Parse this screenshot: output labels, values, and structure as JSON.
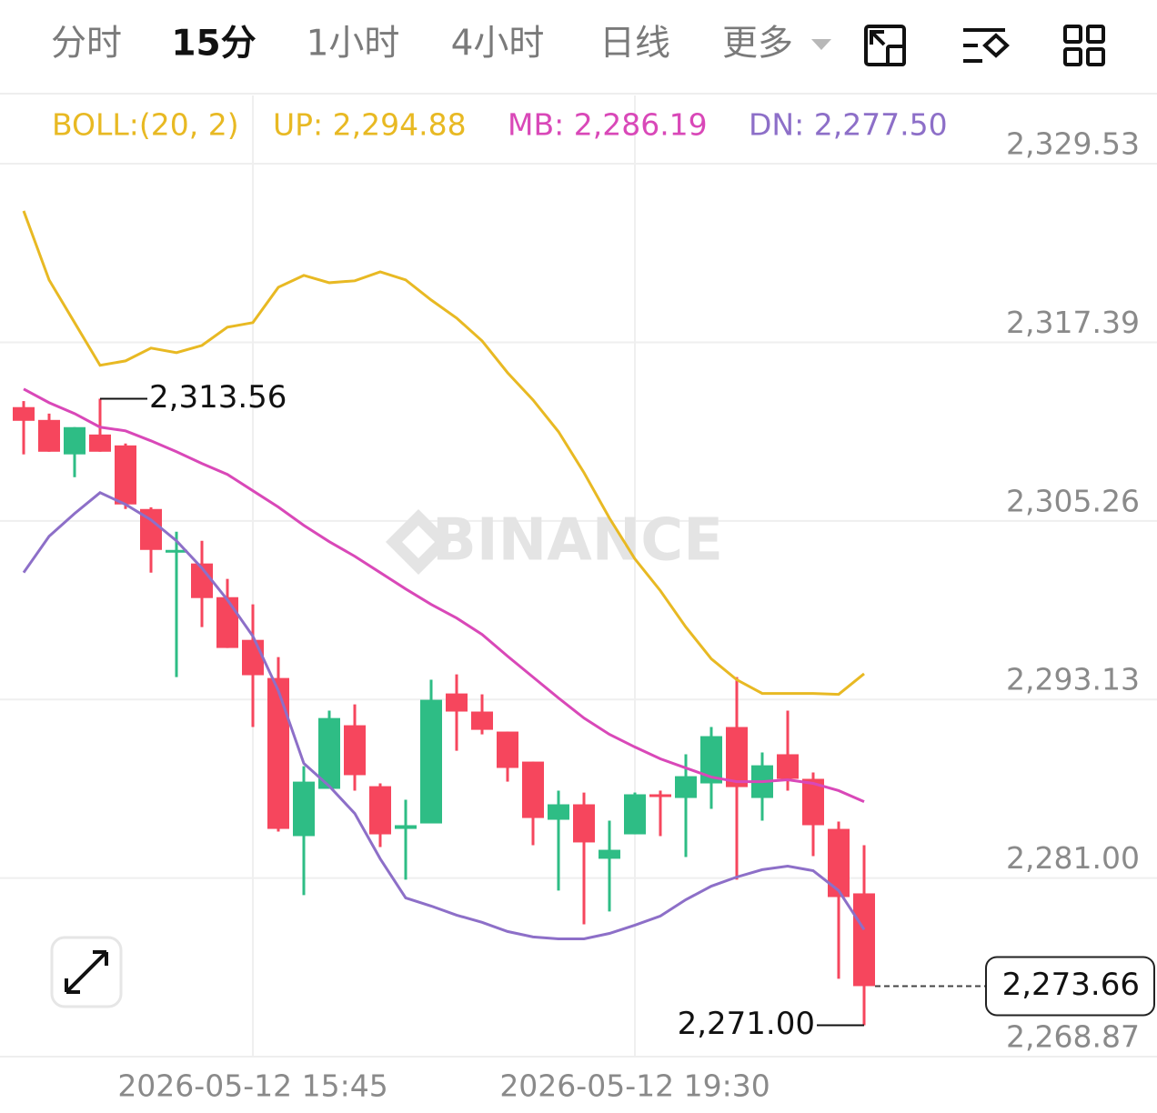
{
  "tabs": {
    "items": [
      "分时",
      "15分",
      "1小时",
      "4小时",
      "日线",
      "更多"
    ],
    "active": 1
  },
  "chart_data": {
    "type": "candlestick",
    "watermark": "BINANCE",
    "indicator": "BOLL:(20, 2)",
    "categories": [
      null,
      null,
      null,
      null,
      null,
      null,
      null,
      null,
      null,
      "2026-05-12 15:45",
      null,
      null,
      null,
      null,
      null,
      null,
      null,
      null,
      null,
      null,
      null,
      null,
      null,
      null,
      "2026-05-12 19:30",
      null,
      null,
      null,
      null,
      null,
      null,
      null,
      null,
      null
    ],
    "ohlc": {
      "open": [
        2312.99,
        2312.12,
        2309.78,
        2311.13,
        2310.39,
        2306.07,
        2303.17,
        2302.37,
        2300.08,
        2297.18,
        2294.59,
        2283.85,
        2287.06,
        2291.38,
        2287.24,
        2284.34,
        2284.71,
        2293.54,
        2292.31,
        2290.95,
        2288.91,
        2284.96,
        2286.01,
        2282.31,
        2283.97,
        2286.69,
        2286.44,
        2287.43,
        2291.26,
        2286.44,
        2289.41,
        2287.74,
        2284.34,
        2279.96
      ],
      "high": [
        2313.4,
        2312.55,
        2311.63,
        2313.56,
        2310.52,
        2306.19,
        2304.53,
        2303.91,
        2301.32,
        2299.59,
        2296.01,
        2288.6,
        2292.37,
        2292.8,
        2287.43,
        2286.32,
        2294.47,
        2294.84,
        2293.48,
        2290.95,
        2288.91,
        2286.94,
        2286.81,
        2284.9,
        2286.81,
        2286.94,
        2289.41,
        2291.26,
        2294.65,
        2289.53,
        2292.37,
        2288.17,
        2284.84,
        2283.23
      ],
      "low": [
        2309.78,
        2309.96,
        2308.23,
        2309.96,
        2306.07,
        2301.75,
        2294.65,
        2298.05,
        2296.63,
        2291.26,
        2284.16,
        2279.84,
        2287.06,
        2286.94,
        2283.11,
        2280.89,
        2284.71,
        2289.65,
        2290.76,
        2287.55,
        2283.23,
        2280.15,
        2277.86,
        2278.73,
        2283.97,
        2283.85,
        2282.43,
        2285.7,
        2280.89,
        2284.9,
        2286.94,
        2282.49,
        2274.16,
        2271.0
      ],
      "close": [
        2312.06,
        2309.96,
        2311.63,
        2309.96,
        2306.38,
        2303.29,
        2303.29,
        2300.02,
        2296.63,
        2294.78,
        2284.34,
        2287.55,
        2291.87,
        2287.99,
        2283.97,
        2284.59,
        2293.11,
        2292.31,
        2291.07,
        2288.48,
        2285.08,
        2286.01,
        2283.42,
        2282.92,
        2286.69,
        2286.57,
        2287.92,
        2290.64,
        2287.18,
        2288.66,
        2287.74,
        2284.59,
        2279.71,
        2273.66
      ]
    },
    "up_color": "#2ebd85",
    "down_color": "#f6465d",
    "series": [
      {
        "name": "UP",
        "legend_label": "UP: 2,294.88",
        "color": "#e8b923",
        "values": [
          2326.32,
          2321.63,
          2318.73,
          2315.83,
          2316.13,
          2317.0,
          2316.69,
          2317.18,
          2318.42,
          2318.73,
          2321.13,
          2321.94,
          2321.44,
          2321.57,
          2322.18,
          2321.63,
          2320.27,
          2319.04,
          2317.49,
          2315.33,
          2313.48,
          2311.32,
          2308.54,
          2305.45,
          2302.68,
          2300.52,
          2298.05,
          2295.89,
          2294.47,
          2293.54,
          2293.54,
          2293.54,
          2293.48,
          2294.88
        ]
      },
      {
        "name": "MB",
        "legend_label": "MB: 2,286.19",
        "color": "#d948b8",
        "values": [
          2314.22,
          2313.29,
          2312.55,
          2311.63,
          2311.38,
          2310.7,
          2309.96,
          2309.16,
          2308.42,
          2307.31,
          2306.2,
          2304.96,
          2303.85,
          2302.86,
          2301.75,
          2300.64,
          2299.59,
          2298.66,
          2297.55,
          2296.07,
          2294.65,
          2293.23,
          2291.87,
          2290.76,
          2289.9,
          2289.1,
          2288.48,
          2287.86,
          2287.55,
          2287.55,
          2287.68,
          2287.43,
          2286.94,
          2286.19
        ]
      },
      {
        "name": "DN",
        "legend_label": "DN: 2,277.50",
        "color": "#8d6fc8",
        "values": [
          2301.75,
          2304.22,
          2305.76,
          2307.18,
          2306.38,
          2305.33,
          2303.91,
          2302.06,
          2299.9,
          2297.43,
          2293.73,
          2288.79,
          2287.24,
          2285.39,
          2282.31,
          2279.65,
          2279.1,
          2278.48,
          2277.99,
          2277.37,
          2277.0,
          2276.87,
          2276.87,
          2277.24,
          2277.8,
          2278.42,
          2279.53,
          2280.45,
          2281.07,
          2281.57,
          2281.81,
          2281.5,
          2280.15,
          2277.5
        ]
      }
    ],
    "high_label": {
      "value": 2313.56,
      "label": "2,313.56"
    },
    "low_label": {
      "value": 2271.0,
      "label": "2,271.00"
    },
    "last_price_label": {
      "value": 2273.66,
      "label": "2,273.66"
    },
    "ylim": [
      2268.87,
      2334.16
    ],
    "yticks": [
      {
        "value": 2268.87,
        "label": "2,268.87"
      },
      {
        "value": 2281.0,
        "label": "2,281.00"
      },
      {
        "value": 2293.13,
        "label": "2,293.13"
      },
      {
        "value": 2305.26,
        "label": "2,305.26"
      },
      {
        "value": 2317.39,
        "label": "2,317.39"
      },
      {
        "value": 2329.53,
        "label": "2,329.53"
      }
    ],
    "grid": true
  }
}
